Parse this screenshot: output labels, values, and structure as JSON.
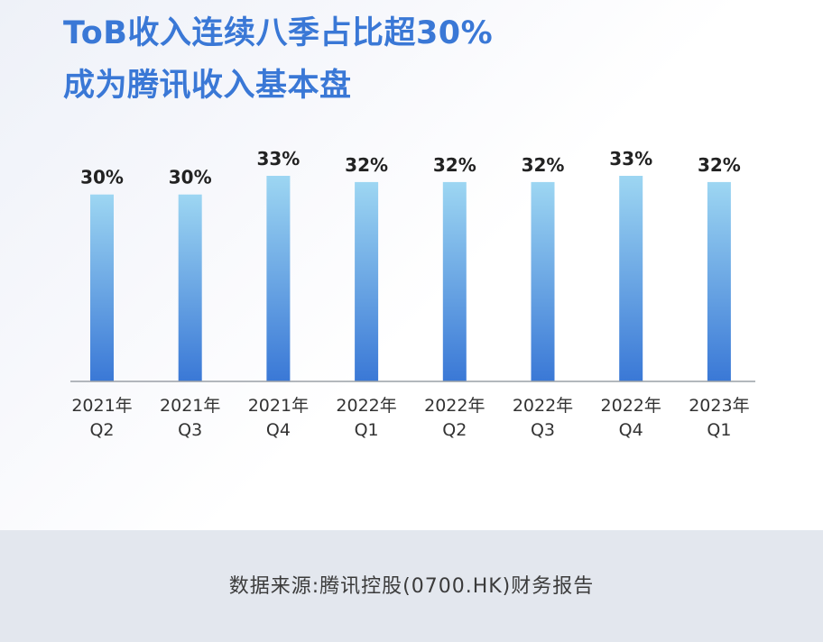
{
  "header": {
    "title_line1": "ToB收入连续八季占比超30%",
    "title_line2": "成为腾讯收入基本盘"
  },
  "footer": {
    "source": "数据来源:腾讯控股(0700.HK)财务报告"
  },
  "chart_data": {
    "type": "bar",
    "categories": [
      [
        "2021年",
        "Q2"
      ],
      [
        "2021年",
        "Q3"
      ],
      [
        "2021年",
        "Q4"
      ],
      [
        "2022年",
        "Q1"
      ],
      [
        "2022年",
        "Q2"
      ],
      [
        "2022年",
        "Q3"
      ],
      [
        "2022年",
        "Q4"
      ],
      [
        "2023年",
        "Q1"
      ]
    ],
    "values": [
      30,
      30,
      33,
      32,
      32,
      32,
      33,
      32
    ],
    "value_labels": [
      "30%",
      "30%",
      "33%",
      "32%",
      "32%",
      "32%",
      "33%",
      "32%"
    ],
    "unit": "%",
    "ylim": [
      0,
      33
    ],
    "grid": false,
    "colors": {
      "bar_top": "#9dd6f2",
      "bar_bottom": "#3a78d6",
      "axis": "#9aa0a6",
      "value_label": "#222222",
      "tick_label": "#333333"
    }
  }
}
